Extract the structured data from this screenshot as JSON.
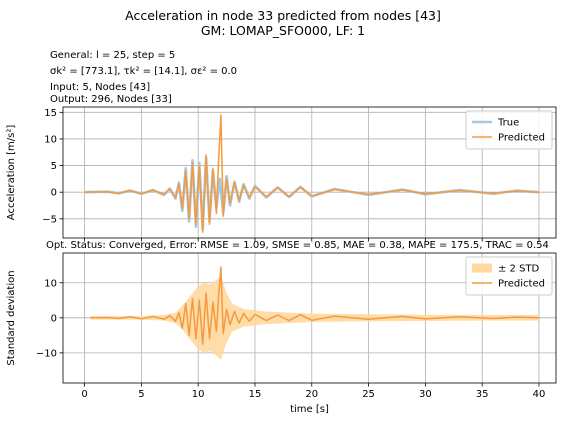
{
  "header": {
    "title_line1": "Acceleration in node 33 predicted from nodes [43]",
    "title_line2": "GM: LOMAP_SFO000, LF: 1"
  },
  "info": {
    "general": "General: l = 25, step = 5",
    "sigma_prefix": "σ",
    "sigma_line": "σk² = [773.1], τk² = [14.1], σε² = 0.0",
    "input": "Input: 5, Nodes [43]",
    "output": "Output: 296, Nodes [33]"
  },
  "status_line": "Opt. Status: Converged, Error: RMSE = 1.09, SMSE = 0.85, MAE = 0.38, MAPE = 175.5, TRAC = 0.54",
  "colors": {
    "true_series": "#a6c8e0",
    "predicted_series": "#f59a3e",
    "std_band": "#ffd9a0",
    "grid": "#b0b0b0"
  },
  "chart_data": [
    {
      "type": "line",
      "ylabel": "Acceleration [m/s²]",
      "xlim": [
        -1.9,
        41.5
      ],
      "ylim": [
        -8.6,
        16.0
      ],
      "xticks": [
        0,
        5,
        10,
        15,
        20,
        25,
        30,
        35,
        40
      ],
      "yticks": [
        -5,
        0,
        5,
        10,
        15
      ],
      "grid": true,
      "legend_position": "top-right",
      "series": [
        {
          "name": "True",
          "x": [
            0.0,
            2.0,
            3.0,
            4.0,
            5.0,
            6.0,
            7.0,
            7.5,
            8.0,
            8.3,
            8.6,
            8.9,
            9.2,
            9.5,
            9.8,
            10.1,
            10.4,
            10.7,
            11.0,
            11.3,
            11.6,
            11.9,
            12.2,
            12.5,
            12.8,
            13.2,
            13.6,
            14.0,
            14.5,
            15.0,
            16.0,
            17.0,
            18.0,
            19.0,
            20.0,
            22.0,
            25.0,
            28.0,
            30.0,
            33.0,
            36.0,
            38.0,
            40.0
          ],
          "y": [
            0.0,
            0.1,
            -0.2,
            0.3,
            -0.3,
            0.4,
            -0.5,
            0.7,
            -1.2,
            1.8,
            -3.5,
            4.5,
            -5.5,
            6.0,
            -6.5,
            5.5,
            -7.0,
            6.5,
            -5.5,
            4.0,
            -3.0,
            2.5,
            -4.0,
            3.0,
            -2.5,
            2.0,
            -1.8,
            1.5,
            -1.2,
            1.2,
            -1.0,
            0.9,
            -0.9,
            1.0,
            -0.8,
            0.6,
            -0.5,
            0.5,
            -0.4,
            0.4,
            -0.3,
            0.3,
            0.0
          ]
        },
        {
          "name": "Predicted",
          "x": [
            0.0,
            2.0,
            3.0,
            4.0,
            5.0,
            6.0,
            7.0,
            7.5,
            8.0,
            8.3,
            8.6,
            8.9,
            9.2,
            9.5,
            9.8,
            10.1,
            10.4,
            10.7,
            11.0,
            11.3,
            11.6,
            11.8,
            12.0,
            12.2,
            12.5,
            12.8,
            13.2,
            13.6,
            14.0,
            14.5,
            15.0,
            16.0,
            17.0,
            18.0,
            19.0,
            20.0,
            22.0,
            25.0,
            28.0,
            30.0,
            33.0,
            36.0,
            38.0,
            40.0
          ],
          "y": [
            0.0,
            0.1,
            -0.2,
            0.3,
            -0.3,
            0.4,
            -0.4,
            0.6,
            -1.0,
            1.5,
            -3.0,
            4.0,
            -5.0,
            5.5,
            -6.0,
            5.0,
            -7.5,
            7.0,
            -6.0,
            4.5,
            -4.0,
            6.0,
            14.5,
            -4.5,
            2.5,
            -2.0,
            1.8,
            -1.5,
            1.3,
            -1.0,
            1.0,
            -0.8,
            0.8,
            -0.8,
            0.9,
            -0.7,
            0.5,
            -0.4,
            0.4,
            -0.3,
            0.3,
            -0.2,
            0.2,
            0.0
          ]
        }
      ]
    },
    {
      "type": "line",
      "xlabel": "time [s]",
      "ylabel": "Standard deviation",
      "xlim": [
        -1.9,
        41.5
      ],
      "ylim": [
        -18.6,
        18.5
      ],
      "xticks": [
        0,
        5,
        10,
        15,
        20,
        25,
        30,
        35,
        40
      ],
      "yticks": [
        -10,
        0,
        10
      ],
      "grid": true,
      "legend_position": "top-right",
      "band": {
        "name": "± 2 STD",
        "x": [
          0.5,
          5.0,
          7.0,
          8.0,
          8.5,
          9.0,
          9.5,
          10.0,
          10.5,
          11.0,
          11.5,
          12.0,
          12.5,
          13.0,
          14.0,
          16.0,
          20.0,
          25.0,
          30.0,
          35.0,
          40.0
        ],
        "half_width": [
          0.5,
          0.5,
          0.8,
          1.5,
          3.0,
          5.0,
          7.0,
          9.0,
          10.0,
          9.5,
          10.5,
          12.0,
          7.0,
          4.0,
          2.5,
          1.8,
          1.2,
          1.0,
          0.9,
          0.8,
          0.8
        ]
      },
      "series": [
        {
          "name": "Predicted",
          "x": [
            0.5,
            2.0,
            3.0,
            4.0,
            5.0,
            6.0,
            7.0,
            7.5,
            8.0,
            8.3,
            8.6,
            8.9,
            9.2,
            9.5,
            9.8,
            10.1,
            10.4,
            10.7,
            11.0,
            11.3,
            11.6,
            11.8,
            12.0,
            12.2,
            12.5,
            12.8,
            13.2,
            13.6,
            14.0,
            14.5,
            15.0,
            16.0,
            17.0,
            18.0,
            19.0,
            20.0,
            22.0,
            25.0,
            28.0,
            30.0,
            33.0,
            36.0,
            38.0,
            40.0
          ],
          "y": [
            0.0,
            0.1,
            -0.2,
            0.3,
            -0.3,
            0.4,
            -0.4,
            0.6,
            -1.0,
            1.5,
            -3.0,
            4.0,
            -5.0,
            5.5,
            -6.0,
            5.0,
            -7.5,
            7.0,
            -6.0,
            4.5,
            -4.0,
            6.0,
            14.5,
            -4.5,
            2.5,
            -2.0,
            1.8,
            -1.5,
            1.3,
            -1.0,
            1.0,
            -0.8,
            0.8,
            -0.8,
            0.9,
            -0.7,
            0.5,
            -0.4,
            0.4,
            -0.3,
            0.3,
            -0.2,
            0.2,
            0.0
          ]
        }
      ]
    }
  ]
}
